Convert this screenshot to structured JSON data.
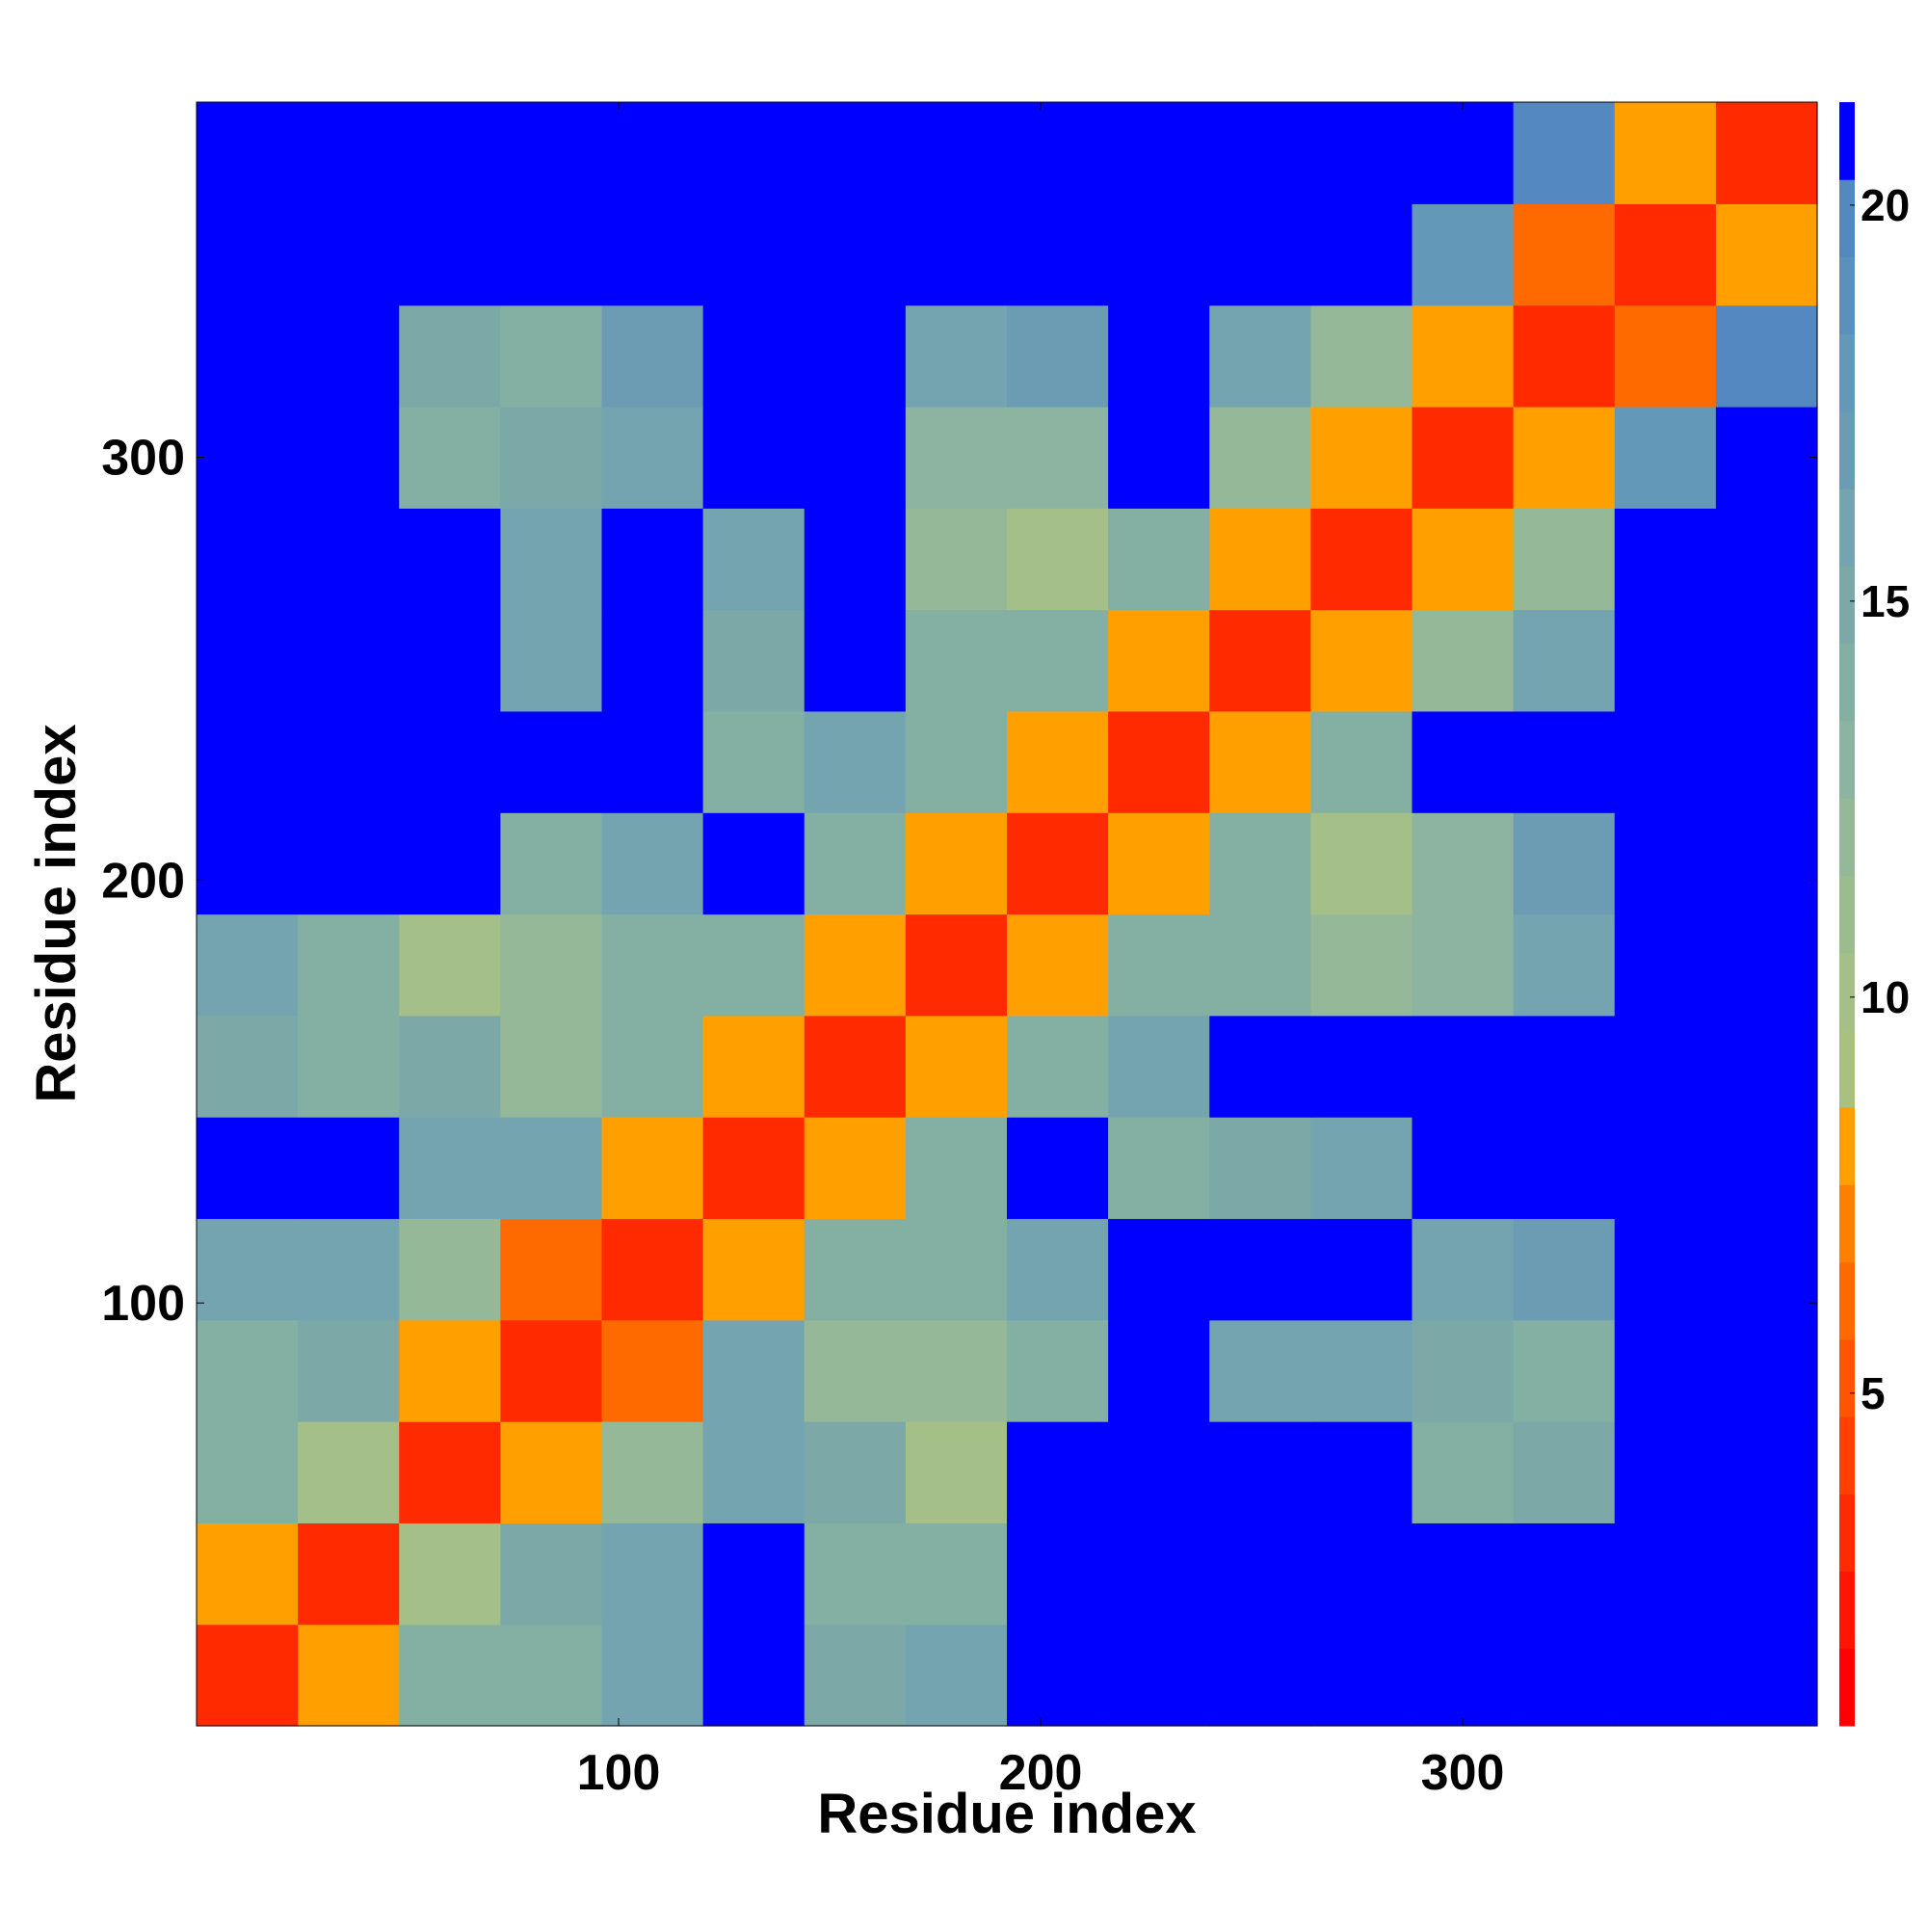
{
  "chart_data": {
    "type": "heatmap",
    "x_label": "Residue index",
    "y_label": "Residue index",
    "xlim": [
      0,
      384
    ],
    "ylim": [
      0,
      384
    ],
    "xticks": [
      100,
      200,
      300
    ],
    "yticks": [
      100,
      200,
      300
    ],
    "x": [
      12,
      36,
      60,
      84,
      108,
      132,
      156,
      180,
      204,
      228,
      252,
      276,
      300,
      324,
      348,
      372
    ],
    "y": [
      12,
      36,
      60,
      84,
      108,
      132,
      156,
      180,
      204,
      228,
      252,
      276,
      300,
      324,
      348,
      372
    ],
    "values": [
      [
        3,
        8,
        14,
        14,
        16,
        21,
        15,
        16,
        21,
        21,
        21,
        21,
        21,
        21,
        21,
        21
      ],
      [
        8,
        3,
        10,
        15,
        16,
        21,
        14,
        14,
        21,
        21,
        21,
        21,
        21,
        21,
        21,
        21
      ],
      [
        14,
        10,
        3,
        8,
        12,
        16,
        15,
        10,
        21,
        21,
        21,
        21,
        14,
        15,
        21,
        21
      ],
      [
        14,
        15,
        8,
        3,
        6,
        16,
        12,
        12,
        14,
        21,
        16,
        16,
        15,
        14,
        21,
        21
      ],
      [
        16,
        16,
        12,
        6,
        3,
        8,
        14,
        14,
        16,
        21,
        21,
        21,
        16,
        17,
        21,
        21
      ],
      [
        21,
        21,
        16,
        16,
        8,
        3,
        8,
        14,
        21,
        14,
        15,
        16,
        21,
        21,
        21,
        21
      ],
      [
        15,
        14,
        15,
        12,
        14,
        8,
        3,
        8,
        14,
        16,
        21,
        21,
        21,
        21,
        21,
        21
      ],
      [
        16,
        14,
        10,
        12,
        14,
        14,
        8,
        3,
        8,
        14,
        14,
        12,
        13,
        16,
        21,
        21
      ],
      [
        21,
        21,
        21,
        14,
        16,
        21,
        14,
        8,
        3,
        8,
        14,
        10,
        13,
        17,
        21,
        21
      ],
      [
        21,
        21,
        21,
        21,
        21,
        14,
        16,
        14,
        8,
        3,
        8,
        14,
        21,
        21,
        21,
        21
      ],
      [
        21,
        21,
        21,
        16,
        21,
        15,
        21,
        14,
        14,
        8,
        3,
        8,
        12,
        16,
        21,
        21
      ],
      [
        21,
        21,
        21,
        16,
        21,
        16,
        21,
        12,
        10,
        14,
        8,
        3,
        8,
        12,
        21,
        21
      ],
      [
        21,
        21,
        14,
        15,
        16,
        21,
        21,
        13,
        13,
        21,
        12,
        8,
        3,
        8,
        18,
        21
      ],
      [
        21,
        21,
        15,
        14,
        17,
        21,
        21,
        16,
        17,
        21,
        16,
        12,
        8,
        3,
        6,
        20
      ],
      [
        21,
        21,
        21,
        21,
        21,
        21,
        21,
        21,
        21,
        21,
        21,
        21,
        18,
        6,
        3,
        8
      ],
      [
        21,
        21,
        21,
        21,
        21,
        21,
        21,
        21,
        21,
        21,
        21,
        21,
        21,
        20,
        8,
        3
      ]
    ],
    "colorbar": {
      "zlim": [
        0.8,
        21.3
      ],
      "ticks": [
        5,
        10,
        15,
        20
      ],
      "colors": [
        "#ff0000",
        "#ff1500",
        "#ff2a00",
        "#ff4000",
        "#ff5500",
        "#ff6a00",
        "#ff8000",
        "#ffa000",
        "#a8c080",
        "#a4c088",
        "#9cbc90",
        "#94b898",
        "#8cb4a0",
        "#84b0a4",
        "#7ca8a8",
        "#74a4b0",
        "#6c9cb4",
        "#6498b8",
        "#5c90bc",
        "#5488c0",
        "#0000ff"
      ]
    }
  }
}
